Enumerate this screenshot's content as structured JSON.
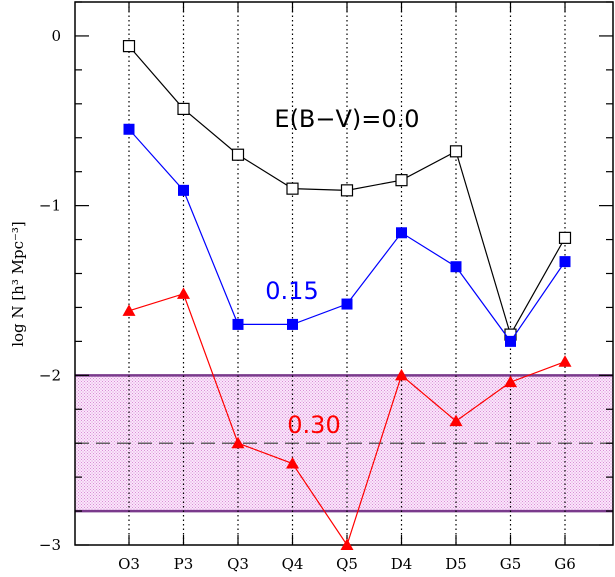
{
  "chart_data": {
    "type": "line",
    "categories": [
      "O3",
      "P3",
      "Q3",
      "Q4",
      "Q5",
      "D4",
      "D5",
      "G5",
      "G6"
    ],
    "ylabel": "log N [h³ Mpc⁻³]",
    "ylim": [
      -3,
      0.2
    ],
    "yticks": [
      0,
      -1,
      -2,
      -3
    ],
    "ytick_labels": [
      "0",
      "−1",
      "−2",
      "−3"
    ],
    "grid": "vertical dotted lines at each category",
    "band": {
      "low": -2.8,
      "high": -2.0,
      "mid": -2.4,
      "color": "#d98fd6",
      "edge_color": "#7a3a8c"
    },
    "series": [
      {
        "label": "E(B−V)=0.0",
        "marker": "open-square",
        "color": "#000000",
        "values": [
          -0.06,
          -0.43,
          -0.7,
          -0.9,
          -0.91,
          -0.85,
          -0.68,
          -1.76,
          -1.19
        ]
      },
      {
        "label": "0.15",
        "marker": "filled-square",
        "color": "#0000ff",
        "values": [
          -0.55,
          -0.91,
          -1.7,
          -1.7,
          -1.58,
          -1.16,
          -1.36,
          -1.8,
          -1.33
        ]
      },
      {
        "label": "0.30",
        "marker": "filled-triangle",
        "color": "#ff0000",
        "values": [
          -1.62,
          -1.52,
          -2.4,
          -2.52,
          -3.0,
          -2.0,
          -2.27,
          -2.04,
          -1.92
        ]
      }
    ]
  }
}
